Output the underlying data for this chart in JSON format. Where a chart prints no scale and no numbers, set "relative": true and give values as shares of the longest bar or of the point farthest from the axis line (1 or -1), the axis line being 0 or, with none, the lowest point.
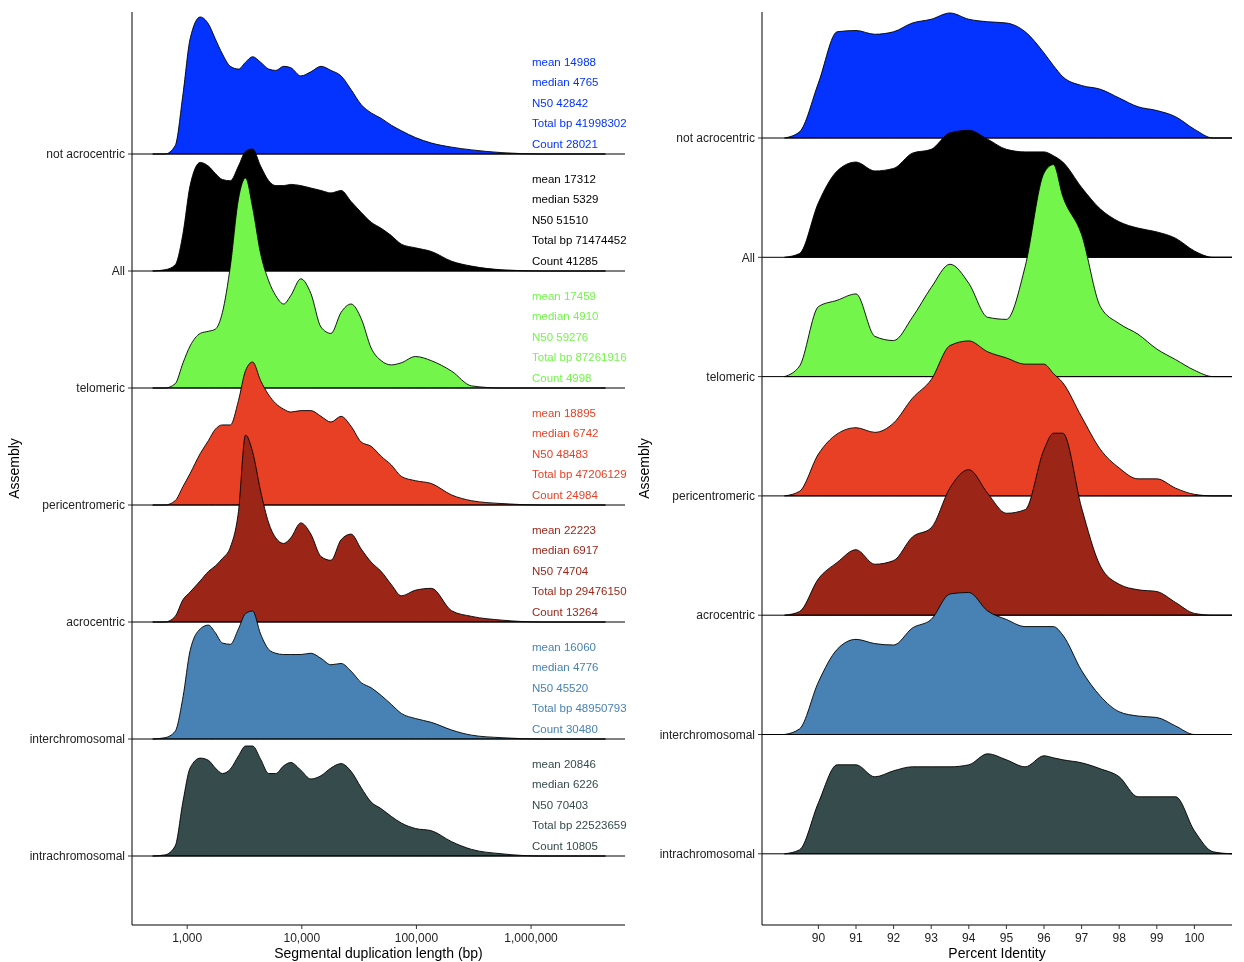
{
  "chart_data": [
    {
      "type": "area",
      "relative": true,
      "log": "x",
      "title": "not acrocentric",
      "xlim": [
        330,
        6600000
      ],
      "tick_labels": false,
      "x": [
        500,
        640,
        785,
        920,
        1060,
        1300,
        1530,
        1760,
        2030,
        2380,
        2800,
        3230,
        3720,
        4370,
        5140,
        5920,
        6950,
        8010,
        9800,
        12000,
        14700,
        17960,
        22000,
        26900,
        33000,
        40300,
        49300,
        60400,
        73800,
        98000,
        135000,
        203000,
        303000,
        557000,
        1250000,
        4460000
      ],
      "series": [
        {
          "color": "#0433ff",
          "values": [
            0,
            0,
            0.06,
            0.44,
            0.84,
            1,
            0.95,
            0.84,
            0.73,
            0.64,
            0.62,
            0.67,
            0.71,
            0.67,
            0.62,
            0.61,
            0.64,
            0.63,
            0.57,
            0.6,
            0.64,
            0.61,
            0.57,
            0.47,
            0.36,
            0.3,
            0.26,
            0.21,
            0.17,
            0.12,
            0.08,
            0.05,
            0.03,
            0.01,
            0,
            0
          ]
        }
      ],
      "annotations": [
        "mean 14988",
        "median 4765",
        "N50 42842",
        "Total bp 41998302",
        "Count 28021"
      ]
    },
    {
      "type": "area",
      "relative": true,
      "log": "x",
      "title": "All",
      "xlim": [
        330,
        6600000
      ],
      "tick_labels": false,
      "x": [
        500,
        640,
        785,
        920,
        1060,
        1300,
        1530,
        1760,
        2030,
        2380,
        2800,
        3230,
        3720,
        4370,
        5140,
        5920,
        6950,
        8010,
        9800,
        12000,
        14700,
        17960,
        22000,
        26900,
        33000,
        40300,
        49300,
        60400,
        73800,
        98000,
        135000,
        203000,
        303000,
        557000,
        1250000,
        4460000
      ],
      "series": [
        {
          "color": "#000000",
          "values": [
            0,
            0.01,
            0.05,
            0.31,
            0.7,
            0.89,
            0.86,
            0.8,
            0.75,
            0.74,
            0.86,
            0.98,
            1,
            0.86,
            0.74,
            0.7,
            0.7,
            0.71,
            0.7,
            0.68,
            0.66,
            0.64,
            0.66,
            0.57,
            0.48,
            0.4,
            0.35,
            0.29,
            0.22,
            0.19,
            0.16,
            0.08,
            0.04,
            0.01,
            0,
            0
          ]
        }
      ],
      "annotations": [
        "mean 17312",
        "median 5329",
        "N50 51510",
        "Total bp 71474452",
        "Count 41285"
      ]
    },
    {
      "type": "area",
      "relative": true,
      "log": "x",
      "title": "telomeric",
      "xlim": [
        330,
        6600000
      ],
      "tick_labels": false,
      "x": [
        500,
        640,
        785,
        920,
        1060,
        1300,
        1530,
        1760,
        2030,
        2380,
        2800,
        3230,
        3720,
        4370,
        5140,
        5920,
        6950,
        8010,
        9800,
        12000,
        14700,
        17960,
        22000,
        26900,
        33000,
        40300,
        49300,
        60400,
        73800,
        98000,
        135000,
        203000,
        303000,
        557000,
        1250000,
        4460000
      ],
      "series": [
        {
          "color": "#73f54b",
          "values": [
            0,
            0,
            0.02,
            0.12,
            0.2,
            0.26,
            0.27,
            0.28,
            0.36,
            0.58,
            0.9,
            1,
            0.86,
            0.64,
            0.51,
            0.44,
            0.4,
            0.44,
            0.52,
            0.45,
            0.29,
            0.26,
            0.36,
            0.4,
            0.33,
            0.19,
            0.13,
            0.11,
            0.12,
            0.15,
            0.13,
            0.08,
            0.01,
            0,
            0,
            0
          ]
        }
      ],
      "annotations": [
        "mean 17459",
        "median 4910",
        "N50 59276",
        "Total bp 87261916",
        "Count 4998"
      ]
    },
    {
      "type": "area",
      "relative": true,
      "log": "x",
      "title": "pericentromeric",
      "ylabel": "Assembly",
      "xlim": [
        330,
        6600000
      ],
      "tick_labels": false,
      "x": [
        500,
        640,
        785,
        920,
        1060,
        1300,
        1530,
        1760,
        2030,
        2380,
        2800,
        3230,
        3720,
        4370,
        5140,
        5920,
        6950,
        8010,
        9800,
        12000,
        14700,
        17960,
        22000,
        26900,
        33000,
        40300,
        49300,
        60400,
        73800,
        98000,
        135000,
        203000,
        303000,
        557000,
        1250000,
        4460000
      ],
      "series": [
        {
          "color": "#e84025",
          "values": [
            0,
            0,
            0.03,
            0.13,
            0.22,
            0.36,
            0.45,
            0.53,
            0.56,
            0.56,
            0.73,
            0.94,
            1,
            0.87,
            0.77,
            0.71,
            0.67,
            0.65,
            0.66,
            0.66,
            0.62,
            0.58,
            0.62,
            0.55,
            0.44,
            0.41,
            0.34,
            0.28,
            0.2,
            0.17,
            0.15,
            0.07,
            0.03,
            0.01,
            0,
            0
          ]
        }
      ],
      "annotations": [
        "mean 18895",
        "median 6742",
        "N50 48483",
        "Total bp 47206129",
        "Count 24984"
      ]
    },
    {
      "type": "area",
      "relative": true,
      "log": "x",
      "title": "acrocentric",
      "xlim": [
        330,
        6600000
      ],
      "tick_labels": false,
      "x": [
        500,
        640,
        785,
        920,
        1060,
        1300,
        1530,
        1760,
        2030,
        2380,
        2800,
        3230,
        3720,
        4370,
        5140,
        5920,
        6950,
        8010,
        9800,
        12000,
        14700,
        17960,
        22000,
        26900,
        33000,
        40300,
        49300,
        60400,
        73800,
        98000,
        135000,
        203000,
        303000,
        557000,
        1250000,
        4460000
      ],
      "series": [
        {
          "color": "#9b2618",
          "values": [
            0,
            0,
            0.03,
            0.12,
            0.16,
            0.22,
            0.27,
            0.3,
            0.34,
            0.4,
            0.59,
            1,
            0.91,
            0.7,
            0.53,
            0.45,
            0.42,
            0.45,
            0.53,
            0.47,
            0.35,
            0.33,
            0.44,
            0.47,
            0.39,
            0.32,
            0.27,
            0.2,
            0.14,
            0.17,
            0.18,
            0.06,
            0.03,
            0.01,
            0,
            0
          ]
        }
      ],
      "annotations": [
        "mean 22223",
        "median 6917",
        "N50 74704",
        "Total bp 29476150",
        "Count 13264"
      ]
    },
    {
      "type": "area",
      "relative": true,
      "log": "x",
      "title": "interchromosomal",
      "xlim": [
        330,
        6600000
      ],
      "tick_labels": false,
      "x": [
        500,
        640,
        785,
        920,
        1060,
        1300,
        1530,
        1760,
        2030,
        2380,
        2800,
        3230,
        3720,
        4370,
        5140,
        5920,
        6950,
        8010,
        9800,
        12000,
        14700,
        17960,
        22000,
        26900,
        33000,
        40300,
        49300,
        60400,
        73800,
        98000,
        135000,
        203000,
        303000,
        557000,
        1250000,
        4460000
      ],
      "series": [
        {
          "color": "#4882b4",
          "values": [
            0,
            0.01,
            0.06,
            0.33,
            0.69,
            0.86,
            0.89,
            0.83,
            0.75,
            0.74,
            0.86,
            0.98,
            1,
            0.82,
            0.7,
            0.67,
            0.66,
            0.66,
            0.66,
            0.67,
            0.63,
            0.58,
            0.59,
            0.53,
            0.44,
            0.4,
            0.34,
            0.27,
            0.2,
            0.16,
            0.13,
            0.07,
            0.03,
            0.01,
            0,
            0
          ]
        }
      ],
      "annotations": [
        "mean 16060",
        "median 4776",
        "N50 45520",
        "Total bp 48950793",
        "Count 30480"
      ]
    },
    {
      "type": "area",
      "relative": true,
      "log": "x",
      "title": "intrachromosomal",
      "xlabel": "Segmental duplication length (bp)",
      "xlim": [
        330,
        6600000
      ],
      "xticks": [
        {
          "value": 1000,
          "label": "1,000"
        },
        {
          "value": 10000,
          "label": "10,000"
        },
        {
          "value": 100000,
          "label": "100,000"
        },
        {
          "value": 1000000,
          "label": "1,000,000"
        }
      ],
      "tick_labels": "x",
      "x": [
        500,
        640,
        785,
        920,
        1060,
        1300,
        1530,
        1760,
        2030,
        2380,
        2800,
        3230,
        3720,
        4370,
        5140,
        5920,
        6950,
        8010,
        9800,
        12000,
        14700,
        17960,
        22000,
        26900,
        33000,
        40300,
        49300,
        60400,
        73800,
        98000,
        135000,
        203000,
        303000,
        557000,
        1250000,
        4460000
      ],
      "series": [
        {
          "color": "#364b4b",
          "values": [
            0,
            0.01,
            0.09,
            0.5,
            0.8,
            0.89,
            0.87,
            0.8,
            0.75,
            0.79,
            0.91,
            1,
            1,
            0.88,
            0.75,
            0.75,
            0.82,
            0.85,
            0.78,
            0.7,
            0.73,
            0.8,
            0.84,
            0.77,
            0.62,
            0.49,
            0.43,
            0.36,
            0.3,
            0.25,
            0.23,
            0.13,
            0.06,
            0.02,
            0,
            0
          ]
        }
      ],
      "annotations": [
        "mean 20846",
        "median 6226",
        "N50 70403",
        "Total bp 22523659",
        "Count 10805"
      ]
    },
    {
      "type": "area",
      "relative": true,
      "title": "not acrocentric",
      "xlim": [
        88.5,
        101
      ],
      "tick_labels": false,
      "x": [
        89.1,
        89.5,
        90,
        90.5,
        91,
        91.5,
        92,
        92.5,
        93,
        93.5,
        94,
        94.5,
        95,
        95.5,
        96,
        96.25,
        96.5,
        97,
        97.5,
        98,
        98.5,
        99,
        99.5,
        100,
        100.5,
        101
      ],
      "series": [
        {
          "color": "#0433ff",
          "values": [
            0,
            0.05,
            0.44,
            0.85,
            0.86,
            0.83,
            0.85,
            0.92,
            0.95,
            1,
            0.95,
            0.93,
            0.92,
            0.85,
            0.68,
            0.58,
            0.49,
            0.42,
            0.39,
            0.32,
            0.25,
            0.22,
            0.17,
            0.07,
            0,
            0
          ]
        }
      ]
    },
    {
      "type": "area",
      "relative": true,
      "title": "All",
      "xlim": [
        88.5,
        101
      ],
      "tick_labels": false,
      "x": [
        89.1,
        89.5,
        90,
        90.5,
        91,
        91.5,
        92,
        92.5,
        93,
        93.5,
        94,
        94.5,
        95,
        95.5,
        96,
        96.25,
        96.5,
        97,
        97.5,
        98,
        98.5,
        99,
        99.5,
        100,
        100.5,
        101
      ],
      "series": [
        {
          "color": "#000000",
          "values": [
            0,
            0.03,
            0.43,
            0.68,
            0.75,
            0.68,
            0.7,
            0.82,
            0.85,
            0.98,
            1,
            0.93,
            0.85,
            0.83,
            0.83,
            0.8,
            0.75,
            0.55,
            0.38,
            0.28,
            0.23,
            0.2,
            0.15,
            0.05,
            0,
            0
          ]
        }
      ]
    },
    {
      "type": "area",
      "relative": true,
      "title": "telomeric",
      "xlim": [
        88.5,
        101
      ],
      "tick_labels": false,
      "x": [
        89.1,
        89.5,
        90,
        90.5,
        91,
        91.5,
        92,
        92.5,
        93,
        93.5,
        94,
        94.5,
        95,
        95.5,
        96,
        96.25,
        96.5,
        97,
        97.5,
        98,
        98.5,
        99,
        99.5,
        100,
        100.5,
        101
      ],
      "series": [
        {
          "color": "#73f54b",
          "values": [
            0,
            0.05,
            0.33,
            0.36,
            0.39,
            0.19,
            0.17,
            0.28,
            0.42,
            0.53,
            0.44,
            0.28,
            0.27,
            0.52,
            0.96,
            1,
            0.85,
            0.67,
            0.33,
            0.25,
            0.2,
            0.13,
            0.08,
            0.03,
            0,
            0
          ]
        }
      ]
    },
    {
      "type": "area",
      "relative": true,
      "title": "pericentromeric",
      "ylabel": "Assembly",
      "xlim": [
        88.5,
        101
      ],
      "tick_labels": false,
      "x": [
        89.1,
        89.5,
        90,
        90.5,
        91,
        91.5,
        92,
        92.5,
        93,
        93.5,
        94,
        94.5,
        95,
        95.5,
        96,
        96.25,
        96.5,
        97,
        97.5,
        98,
        98.5,
        99,
        99.5,
        100,
        100.5,
        101
      ],
      "series": [
        {
          "color": "#e84025",
          "values": [
            0,
            0.03,
            0.27,
            0.4,
            0.44,
            0.41,
            0.47,
            0.63,
            0.75,
            0.97,
            1,
            0.93,
            0.89,
            0.85,
            0.85,
            0.79,
            0.73,
            0.51,
            0.3,
            0.18,
            0.11,
            0.11,
            0.05,
            0.01,
            0,
            0
          ]
        }
      ]
    },
    {
      "type": "area",
      "relative": true,
      "title": "acrocentric",
      "xlim": [
        88.5,
        101
      ],
      "tick_labels": false,
      "x": [
        89.1,
        89.5,
        90,
        90.5,
        91,
        91.5,
        92,
        92.5,
        93,
        93.5,
        94,
        94.5,
        95,
        95.5,
        96,
        96.25,
        96.5,
        97,
        97.5,
        98,
        98.5,
        99,
        99.5,
        100,
        100.5,
        101
      ],
      "series": [
        {
          "color": "#9b2618",
          "values": [
            0,
            0.02,
            0.2,
            0.29,
            0.36,
            0.28,
            0.3,
            0.43,
            0.48,
            0.7,
            0.8,
            0.67,
            0.56,
            0.58,
            0.91,
            1,
            1,
            0.59,
            0.27,
            0.17,
            0.14,
            0.13,
            0.07,
            0.01,
            0,
            0
          ]
        }
      ]
    },
    {
      "type": "area",
      "relative": true,
      "title": "interchromosomal",
      "xlim": [
        88.5,
        101
      ],
      "tick_labels": false,
      "x": [
        89.1,
        89.5,
        90,
        90.5,
        91,
        91.5,
        92,
        92.5,
        93,
        93.5,
        94,
        94.5,
        95,
        95.5,
        96,
        96.25,
        96.5,
        97,
        97.5,
        98,
        98.5,
        99,
        99.5,
        100,
        100.5,
        101
      ],
      "series": [
        {
          "color": "#4882b4",
          "values": [
            0,
            0.04,
            0.37,
            0.6,
            0.67,
            0.64,
            0.63,
            0.75,
            0.81,
            0.99,
            1,
            0.87,
            0.81,
            0.76,
            0.76,
            0.76,
            0.7,
            0.45,
            0.27,
            0.16,
            0.13,
            0.12,
            0.06,
            0,
            0,
            0
          ]
        }
      ]
    },
    {
      "type": "area",
      "relative": true,
      "title": "intrachromosomal",
      "xlabel": "Percent Identity",
      "xlim": [
        88.5,
        101
      ],
      "xticks": [
        90,
        91,
        92,
        93,
        94,
        95,
        96,
        97,
        98,
        99,
        100
      ],
      "tick_labels": "x",
      "x": [
        89.1,
        89.5,
        90,
        90.5,
        91,
        91.5,
        92,
        92.5,
        93,
        93.5,
        94,
        94.5,
        95,
        95.5,
        96,
        96.25,
        96.5,
        97,
        97.5,
        98,
        98.5,
        99,
        99.5,
        100,
        100.5,
        101
      ],
      "series": [
        {
          "color": "#364b4b",
          "values": [
            0,
            0.04,
            0.51,
            0.89,
            0.89,
            0.77,
            0.83,
            0.87,
            0.87,
            0.87,
            0.89,
            1,
            0.94,
            0.87,
            0.98,
            0.96,
            0.94,
            0.91,
            0.85,
            0.77,
            0.57,
            0.57,
            0.57,
            0.23,
            0.02,
            0
          ]
        }
      ]
    }
  ]
}
